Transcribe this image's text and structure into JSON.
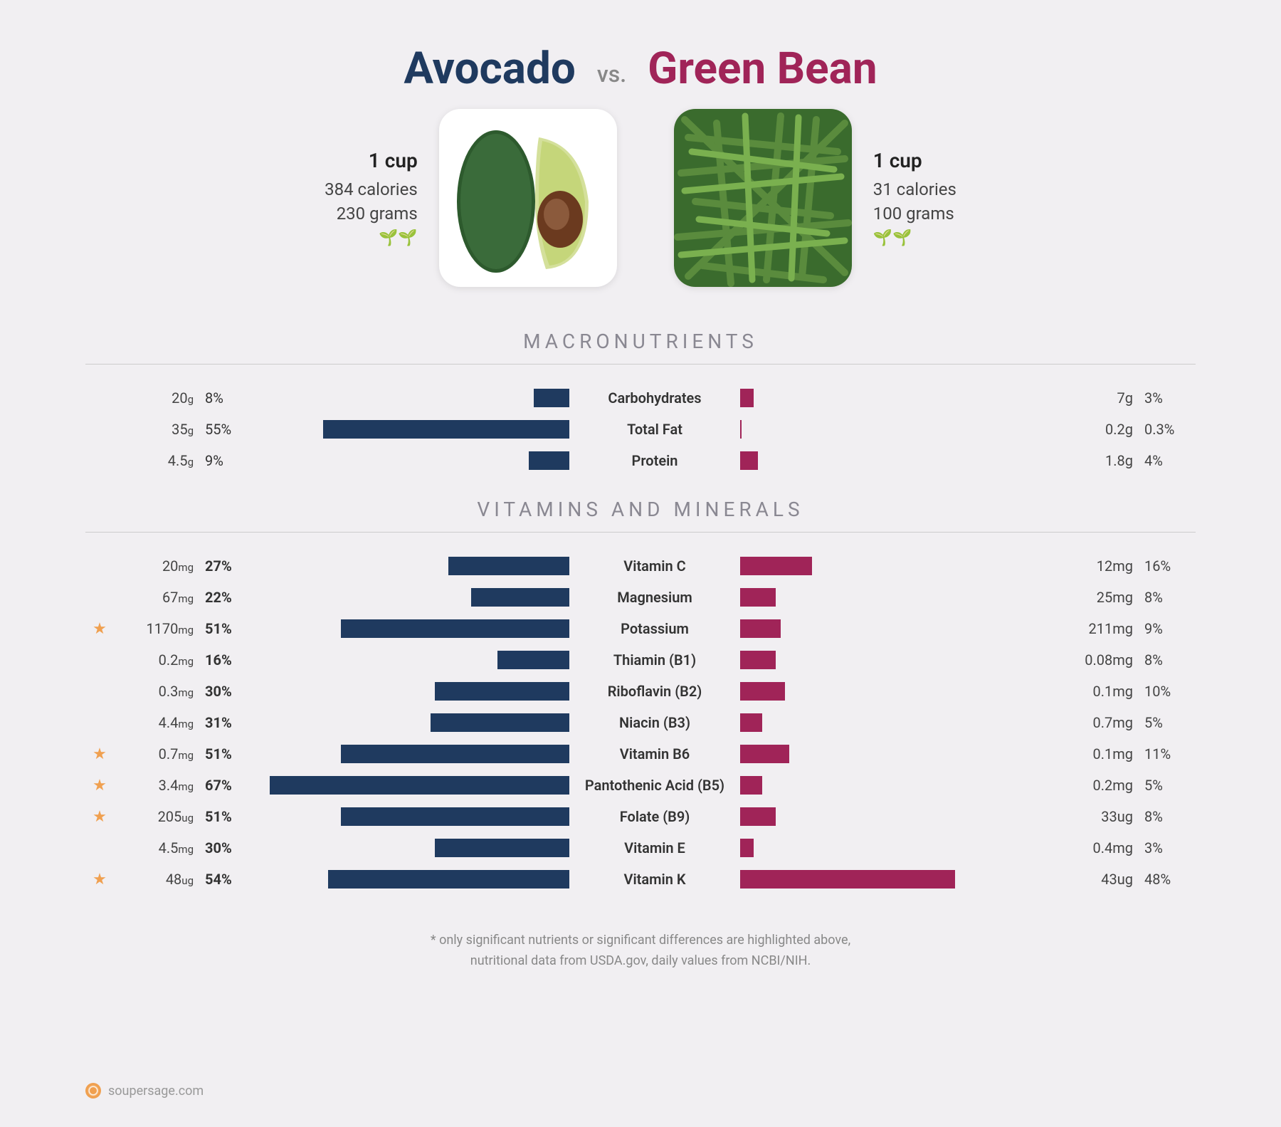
{
  "colors": {
    "left": "#1f3a5f",
    "right": "#a02458",
    "star": "#f0a050",
    "section": "#8a8892",
    "bg": "#f1eff2"
  },
  "header": {
    "left_name": "Avocado",
    "right_name": "Green Bean",
    "vs": "vs."
  },
  "summary": {
    "left": {
      "serving": "1 cup",
      "calories": "384 calories",
      "grams": "230 grams",
      "leaves": "🌱🌱"
    },
    "right": {
      "serving": "1 cup",
      "calories": "31 calories",
      "grams": "100 grams",
      "leaves": "🌱🌱"
    }
  },
  "sections": {
    "macro_title": "MACRONUTRIENTS",
    "vit_title": "VITAMINS AND MINERALS"
  },
  "bar_scale": {
    "max_pct": 70
  },
  "macros": [
    {
      "label": "Carbohydrates",
      "l_val": "20",
      "l_unit": "g",
      "l_pct": 8,
      "r_val": "7",
      "r_unit": "g",
      "r_pct": 3,
      "star": false
    },
    {
      "label": "Total Fat",
      "l_val": "35",
      "l_unit": "g",
      "l_pct": 55,
      "r_val": "0.2",
      "r_unit": "g",
      "r_pct": 0.3,
      "star": false
    },
    {
      "label": "Protein",
      "l_val": "4.5",
      "l_unit": "g",
      "l_pct": 9,
      "r_val": "1.8",
      "r_unit": "g",
      "r_pct": 4,
      "star": false
    }
  ],
  "vitamins": [
    {
      "label": "Vitamin C",
      "l_val": "20",
      "l_unit": "mg",
      "l_pct": 27,
      "r_val": "12",
      "r_unit": "mg",
      "r_pct": 16,
      "star": false
    },
    {
      "label": "Magnesium",
      "l_val": "67",
      "l_unit": "mg",
      "l_pct": 22,
      "r_val": "25",
      "r_unit": "mg",
      "r_pct": 8,
      "star": false
    },
    {
      "label": "Potassium",
      "l_val": "1170",
      "l_unit": "mg",
      "l_pct": 51,
      "r_val": "211",
      "r_unit": "mg",
      "r_pct": 9,
      "star": true
    },
    {
      "label": "Thiamin (B1)",
      "l_val": "0.2",
      "l_unit": "mg",
      "l_pct": 16,
      "r_val": "0.08",
      "r_unit": "mg",
      "r_pct": 8,
      "star": false
    },
    {
      "label": "Riboflavin (B2)",
      "l_val": "0.3",
      "l_unit": "mg",
      "l_pct": 30,
      "r_val": "0.1",
      "r_unit": "mg",
      "r_pct": 10,
      "star": false
    },
    {
      "label": "Niacin (B3)",
      "l_val": "4.4",
      "l_unit": "mg",
      "l_pct": 31,
      "r_val": "0.7",
      "r_unit": "mg",
      "r_pct": 5,
      "star": false
    },
    {
      "label": "Vitamin B6",
      "l_val": "0.7",
      "l_unit": "mg",
      "l_pct": 51,
      "r_val": "0.1",
      "r_unit": "mg",
      "r_pct": 11,
      "star": true
    },
    {
      "label": "Pantothenic Acid (B5)",
      "l_val": "3.4",
      "l_unit": "mg",
      "l_pct": 67,
      "r_val": "0.2",
      "r_unit": "mg",
      "r_pct": 5,
      "star": true
    },
    {
      "label": "Folate (B9)",
      "l_val": "205",
      "l_unit": "ug",
      "l_pct": 51,
      "r_val": "33",
      "r_unit": "ug",
      "r_pct": 8,
      "star": true
    },
    {
      "label": "Vitamin E",
      "l_val": "4.5",
      "l_unit": "mg",
      "l_pct": 30,
      "r_val": "0.4",
      "r_unit": "mg",
      "r_pct": 3,
      "star": false
    },
    {
      "label": "Vitamin K",
      "l_val": "48",
      "l_unit": "ug",
      "l_pct": 54,
      "r_val": "43",
      "r_unit": "ug",
      "r_pct": 48,
      "star": true
    }
  ],
  "disclaimer": {
    "line1": "* only significant nutrients or significant differences are highlighted above,",
    "line2": "nutritional data from USDA.gov, daily values from NCBI/NIH."
  },
  "footer": {
    "site": "soupersage.com"
  }
}
